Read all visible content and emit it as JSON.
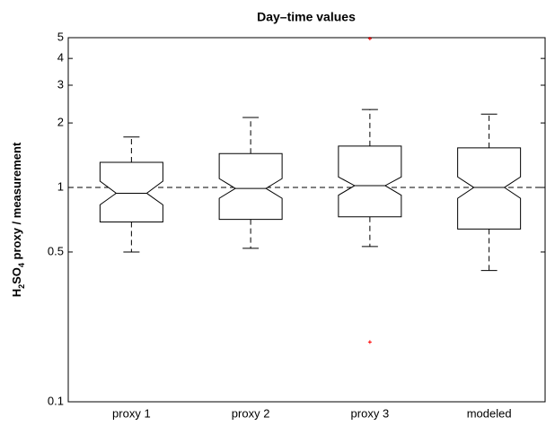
{
  "chart_data": {
    "type": "boxplot",
    "title": "Day–time values",
    "ylabel": [
      "H",
      "2",
      "SO",
      "4",
      " proxy / measurement"
    ],
    "categories": [
      "proxy 1",
      "proxy 2",
      "proxy 3",
      "modeled"
    ],
    "boxes": [
      {
        "whisker_low": 0.5,
        "q1": 0.69,
        "notch_low": 0.83,
        "median": 0.94,
        "notch_high": 1.07,
        "q3": 1.31,
        "whisker_high": 1.72
      },
      {
        "whisker_low": 0.52,
        "q1": 0.71,
        "notch_low": 0.89,
        "median": 0.99,
        "notch_high": 1.1,
        "q3": 1.44,
        "whisker_high": 2.12
      },
      {
        "whisker_low": 0.53,
        "q1": 0.73,
        "notch_low": 0.92,
        "median": 1.02,
        "notch_high": 1.12,
        "q3": 1.56,
        "whisker_high": 2.31
      },
      {
        "whisker_low": 0.41,
        "q1": 0.64,
        "notch_low": 0.89,
        "median": 1.0,
        "notch_high": 1.12,
        "q3": 1.53,
        "whisker_high": 2.2
      }
    ],
    "outliers": [
      [],
      [],
      [
        4.95,
        0.19
      ],
      []
    ],
    "outlier_color": "#ff0000",
    "reference_line": 1,
    "log_scale": true,
    "ylim": [
      0.1,
      5
    ],
    "yticks": [
      0.1,
      0.5,
      1,
      2,
      3,
      4,
      5
    ]
  }
}
